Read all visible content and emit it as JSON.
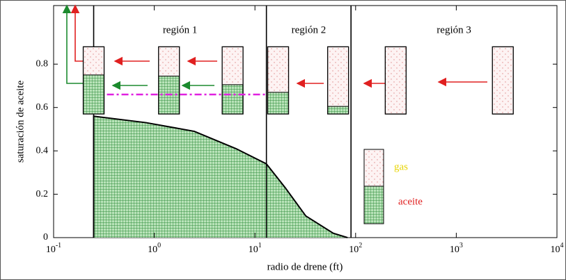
{
  "chart_data": {
    "type": "area",
    "x_label": "radio de drene (ft)",
    "y_label": "saturación de aceite",
    "log_x": true,
    "xlim": [
      0.1,
      10000
    ],
    "ylim": [
      0,
      1.07
    ],
    "xticks": [
      {
        "value": 0.1,
        "label": "10",
        "exponent": "-1"
      },
      {
        "value": 1,
        "label": "10",
        "exponent": "0"
      },
      {
        "value": 10,
        "label": "10",
        "exponent": "1"
      },
      {
        "value": 100,
        "label": "10",
        "exponent": "2"
      },
      {
        "value": 1000,
        "label": "10",
        "exponent": "3"
      },
      {
        "value": 10000,
        "label": "10",
        "exponent": "4"
      }
    ],
    "yticks": [
      0,
      0.2,
      0.4,
      0.6,
      0.8
    ],
    "series": [
      {
        "name": "aceite",
        "color": "#2e9a3e",
        "x": [
          0.25,
          0.83,
          2.5,
          6.5,
          13,
          20,
          32,
          60,
          83
        ],
        "values": [
          0.56,
          0.53,
          0.49,
          0.41,
          0.34,
          0.23,
          0.1,
          0.02,
          0
        ]
      }
    ],
    "boundaries": [
      0.25,
      13,
      90
    ],
    "regions": [
      "región 1",
      "región 2",
      "región 3"
    ],
    "columns": {
      "x": [
        0.25,
        1.4,
        6,
        17,
        67,
        250,
        2900
      ],
      "top": 0.88,
      "bottom": 0.57,
      "oil": [
        0.75,
        0.745,
        0.705,
        0.67,
        0.605,
        0.57,
        0.57
      ]
    },
    "oil_level_line": 0.66,
    "legend": [
      "gas",
      "aceite"
    ]
  }
}
